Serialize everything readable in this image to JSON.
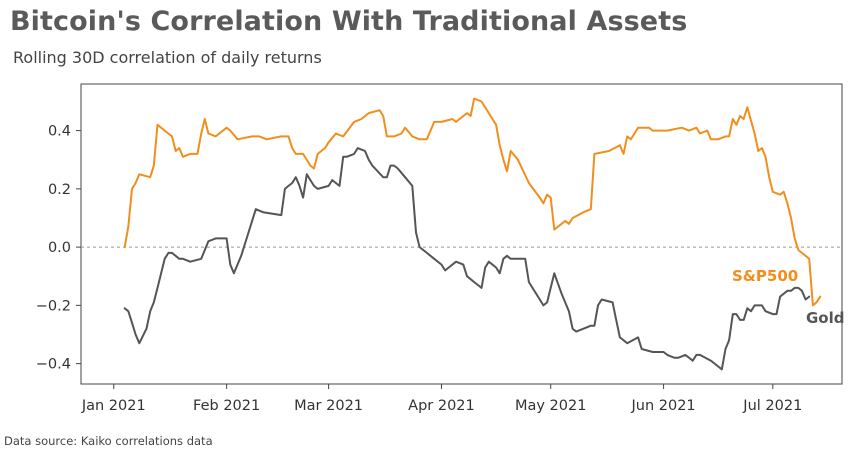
{
  "chart_data": {
    "type": "line",
    "title": "Bitcoin's Correlation With Traditional Assets",
    "subtitle": "Rolling 30D correlation of daily returns",
    "source": "Data source: Kaiko correlations data",
    "xlabel": "",
    "ylabel": "",
    "ylim": [
      -0.47,
      0.56
    ],
    "yticks": [
      0.4,
      0.2,
      0.0,
      -0.2,
      -0.4
    ],
    "ytick_labels": [
      "0.4",
      "0.2",
      "0.0",
      "−0.2",
      "−0.4"
    ],
    "x_domain": [
      "2020-12-23",
      "2021-07-20"
    ],
    "xticks": [
      "2021-01-01",
      "2021-02-01",
      "2021-03-01",
      "2021-04-01",
      "2021-05-01",
      "2021-06-01",
      "2021-07-01"
    ],
    "xtick_labels": [
      "Jan 2021",
      "Feb 2021",
      "Mar 2021",
      "Apr 2021",
      "May 2021",
      "Jun 2021",
      "Jul 2021"
    ],
    "zero_line": true,
    "colors": {
      "sp500": "#f28e1c",
      "gold": "#555555",
      "axis": "#444444",
      "zero": "#999999"
    },
    "series": [
      {
        "name": "S&P500",
        "color": "#f28e1c",
        "label_color": "#f28e1c",
        "points": [
          [
            "2021-01-04",
            0.0
          ],
          [
            "2021-01-05",
            0.07
          ],
          [
            "2021-01-06",
            0.2
          ],
          [
            "2021-01-07",
            0.22
          ],
          [
            "2021-01-08",
            0.25
          ],
          [
            "2021-01-11",
            0.24
          ],
          [
            "2021-01-12",
            0.28
          ],
          [
            "2021-01-13",
            0.42
          ],
          [
            "2021-01-15",
            0.4
          ],
          [
            "2021-01-17",
            0.38
          ],
          [
            "2021-01-18",
            0.33
          ],
          [
            "2021-01-19",
            0.34
          ],
          [
            "2021-01-20",
            0.31
          ],
          [
            "2021-01-22",
            0.32
          ],
          [
            "2021-01-24",
            0.32
          ],
          [
            "2021-01-25",
            0.39
          ],
          [
            "2021-01-26",
            0.44
          ],
          [
            "2021-01-27",
            0.39
          ],
          [
            "2021-01-29",
            0.38
          ],
          [
            "2021-02-01",
            0.41
          ],
          [
            "2021-02-02",
            0.4
          ],
          [
            "2021-02-04",
            0.37
          ],
          [
            "2021-02-08",
            0.38
          ],
          [
            "2021-02-10",
            0.38
          ],
          [
            "2021-02-12",
            0.37
          ],
          [
            "2021-02-16",
            0.38
          ],
          [
            "2021-02-18",
            0.38
          ],
          [
            "2021-02-19",
            0.34
          ],
          [
            "2021-02-20",
            0.32
          ],
          [
            "2021-02-22",
            0.32
          ],
          [
            "2021-02-24",
            0.28
          ],
          [
            "2021-02-25",
            0.27
          ],
          [
            "2021-02-26",
            0.32
          ],
          [
            "2021-02-28",
            0.34
          ],
          [
            "2021-03-01",
            0.36
          ],
          [
            "2021-03-03",
            0.39
          ],
          [
            "2021-03-05",
            0.38
          ],
          [
            "2021-03-08",
            0.43
          ],
          [
            "2021-03-10",
            0.44
          ],
          [
            "2021-03-12",
            0.46
          ],
          [
            "2021-03-15",
            0.47
          ],
          [
            "2021-03-16",
            0.45
          ],
          [
            "2021-03-17",
            0.38
          ],
          [
            "2021-03-19",
            0.38
          ],
          [
            "2021-03-21",
            0.39
          ],
          [
            "2021-03-22",
            0.41
          ],
          [
            "2021-03-24",
            0.38
          ],
          [
            "2021-03-26",
            0.37
          ],
          [
            "2021-03-28",
            0.37
          ],
          [
            "2021-03-30",
            0.43
          ],
          [
            "2021-04-01",
            0.43
          ],
          [
            "2021-04-04",
            0.44
          ],
          [
            "2021-04-05",
            0.43
          ],
          [
            "2021-04-08",
            0.46
          ],
          [
            "2021-04-09",
            0.45
          ],
          [
            "2021-04-10",
            0.51
          ],
          [
            "2021-04-12",
            0.5
          ],
          [
            "2021-04-14",
            0.46
          ],
          [
            "2021-04-16",
            0.42
          ],
          [
            "2021-04-17",
            0.35
          ],
          [
            "2021-04-18",
            0.3
          ],
          [
            "2021-04-19",
            0.26
          ],
          [
            "2021-04-20",
            0.33
          ],
          [
            "2021-04-22",
            0.3
          ],
          [
            "2021-04-25",
            0.22
          ],
          [
            "2021-04-28",
            0.17
          ],
          [
            "2021-04-29",
            0.15
          ],
          [
            "2021-04-30",
            0.18
          ],
          [
            "2021-05-01",
            0.17
          ],
          [
            "2021-05-02",
            0.06
          ],
          [
            "2021-05-04",
            0.08
          ],
          [
            "2021-05-05",
            0.09
          ],
          [
            "2021-05-06",
            0.08
          ],
          [
            "2021-05-07",
            0.1
          ],
          [
            "2021-05-10",
            0.12
          ],
          [
            "2021-05-12",
            0.13
          ],
          [
            "2021-05-13",
            0.32
          ],
          [
            "2021-05-17",
            0.33
          ],
          [
            "2021-05-20",
            0.35
          ],
          [
            "2021-05-21",
            0.32
          ],
          [
            "2021-05-22",
            0.38
          ],
          [
            "2021-05-23",
            0.37
          ],
          [
            "2021-05-24",
            0.39
          ],
          [
            "2021-05-25",
            0.41
          ],
          [
            "2021-05-28",
            0.41
          ],
          [
            "2021-05-29",
            0.4
          ],
          [
            "2021-06-02",
            0.4
          ],
          [
            "2021-06-06",
            0.41
          ],
          [
            "2021-06-08",
            0.4
          ],
          [
            "2021-06-10",
            0.41
          ],
          [
            "2021-06-11",
            0.39
          ],
          [
            "2021-06-13",
            0.4
          ],
          [
            "2021-06-14",
            0.37
          ],
          [
            "2021-06-16",
            0.37
          ],
          [
            "2021-06-18",
            0.38
          ],
          [
            "2021-06-19",
            0.38
          ],
          [
            "2021-06-20",
            0.44
          ],
          [
            "2021-06-21",
            0.42
          ],
          [
            "2021-06-22",
            0.45
          ],
          [
            "2021-06-23",
            0.44
          ],
          [
            "2021-06-24",
            0.48
          ],
          [
            "2021-06-26",
            0.39
          ],
          [
            "2021-06-27",
            0.33
          ],
          [
            "2021-06-28",
            0.34
          ],
          [
            "2021-06-29",
            0.31
          ],
          [
            "2021-06-30",
            0.24
          ],
          [
            "2021-07-01",
            0.19
          ],
          [
            "2021-07-03",
            0.18
          ],
          [
            "2021-07-04",
            0.19
          ],
          [
            "2021-07-05",
            0.15
          ],
          [
            "2021-07-06",
            0.1
          ],
          [
            "2021-07-07",
            0.03
          ],
          [
            "2021-07-08",
            -0.01
          ],
          [
            "2021-07-10",
            -0.03
          ],
          [
            "2021-07-11",
            -0.04
          ],
          [
            "2021-07-12",
            -0.2
          ],
          [
            "2021-07-13",
            -0.19
          ],
          [
            "2021-07-14",
            -0.17
          ]
        ]
      },
      {
        "name": "Gold",
        "color": "#555555",
        "label_color": "#555555",
        "points": [
          [
            "2021-01-04",
            -0.21
          ],
          [
            "2021-01-05",
            -0.22
          ],
          [
            "2021-01-06",
            -0.26
          ],
          [
            "2021-01-07",
            -0.3
          ],
          [
            "2021-01-08",
            -0.33
          ],
          [
            "2021-01-10",
            -0.28
          ],
          [
            "2021-01-11",
            -0.22
          ],
          [
            "2021-01-12",
            -0.19
          ],
          [
            "2021-01-13",
            -0.14
          ],
          [
            "2021-01-15",
            -0.04
          ],
          [
            "2021-01-16",
            -0.02
          ],
          [
            "2021-01-17",
            -0.02
          ],
          [
            "2021-01-19",
            -0.04
          ],
          [
            "2021-01-20",
            -0.04
          ],
          [
            "2021-01-22",
            -0.05
          ],
          [
            "2021-01-25",
            -0.04
          ],
          [
            "2021-01-27",
            0.02
          ],
          [
            "2021-01-29",
            0.03
          ],
          [
            "2021-02-01",
            0.03
          ],
          [
            "2021-02-02",
            -0.06
          ],
          [
            "2021-02-03",
            -0.09
          ],
          [
            "2021-02-05",
            -0.03
          ],
          [
            "2021-02-07",
            0.05
          ],
          [
            "2021-02-08",
            0.09
          ],
          [
            "2021-02-09",
            0.13
          ],
          [
            "2021-02-11",
            0.12
          ],
          [
            "2021-02-16",
            0.11
          ],
          [
            "2021-02-17",
            0.2
          ],
          [
            "2021-02-18",
            0.21
          ],
          [
            "2021-02-19",
            0.22
          ],
          [
            "2021-02-20",
            0.24
          ],
          [
            "2021-02-21",
            0.21
          ],
          [
            "2021-02-22",
            0.17
          ],
          [
            "2021-02-23",
            0.25
          ],
          [
            "2021-02-24",
            0.23
          ],
          [
            "2021-02-25",
            0.21
          ],
          [
            "2021-02-26",
            0.2
          ],
          [
            "2021-03-01",
            0.21
          ],
          [
            "2021-03-02",
            0.23
          ],
          [
            "2021-03-04",
            0.21
          ],
          [
            "2021-03-05",
            0.31
          ],
          [
            "2021-03-06",
            0.31
          ],
          [
            "2021-03-08",
            0.32
          ],
          [
            "2021-03-09",
            0.34
          ],
          [
            "2021-03-11",
            0.33
          ],
          [
            "2021-03-12",
            0.3
          ],
          [
            "2021-03-13",
            0.28
          ],
          [
            "2021-03-16",
            0.24
          ],
          [
            "2021-03-17",
            0.24
          ],
          [
            "2021-03-18",
            0.28
          ],
          [
            "2021-03-19",
            0.28
          ],
          [
            "2021-03-20",
            0.27
          ],
          [
            "2021-03-22",
            0.24
          ],
          [
            "2021-03-24",
            0.21
          ],
          [
            "2021-03-25",
            0.05
          ],
          [
            "2021-03-26",
            0.0
          ],
          [
            "2021-03-28",
            -0.02
          ],
          [
            "2021-03-30",
            -0.04
          ],
          [
            "2021-04-01",
            -0.06
          ],
          [
            "2021-04-02",
            -0.08
          ],
          [
            "2021-04-03",
            -0.07
          ],
          [
            "2021-04-05",
            -0.05
          ],
          [
            "2021-04-07",
            -0.06
          ],
          [
            "2021-04-08",
            -0.1
          ],
          [
            "2021-04-10",
            -0.12
          ],
          [
            "2021-04-11",
            -0.13
          ],
          [
            "2021-04-12",
            -0.14
          ],
          [
            "2021-04-13",
            -0.07
          ],
          [
            "2021-04-14",
            -0.05
          ],
          [
            "2021-04-16",
            -0.07
          ],
          [
            "2021-04-17",
            -0.09
          ],
          [
            "2021-04-18",
            -0.04
          ],
          [
            "2021-04-19",
            -0.03
          ],
          [
            "2021-04-20",
            -0.04
          ],
          [
            "2021-04-22",
            -0.04
          ],
          [
            "2021-04-23",
            -0.04
          ],
          [
            "2021-04-24",
            -0.04
          ],
          [
            "2021-04-25",
            -0.12
          ],
          [
            "2021-04-26",
            -0.14
          ],
          [
            "2021-04-28",
            -0.18
          ],
          [
            "2021-04-29",
            -0.2
          ],
          [
            "2021-04-30",
            -0.19
          ],
          [
            "2021-05-02",
            -0.09
          ],
          [
            "2021-05-04",
            -0.16
          ],
          [
            "2021-05-06",
            -0.22
          ],
          [
            "2021-05-07",
            -0.28
          ],
          [
            "2021-05-08",
            -0.29
          ],
          [
            "2021-05-10",
            -0.28
          ],
          [
            "2021-05-12",
            -0.27
          ],
          [
            "2021-05-13",
            -0.27
          ],
          [
            "2021-05-14",
            -0.2
          ],
          [
            "2021-05-15",
            -0.18
          ],
          [
            "2021-05-18",
            -0.19
          ],
          [
            "2021-05-19",
            -0.25
          ],
          [
            "2021-05-20",
            -0.31
          ],
          [
            "2021-05-22",
            -0.33
          ],
          [
            "2021-05-25",
            -0.31
          ],
          [
            "2021-05-26",
            -0.35
          ],
          [
            "2021-05-29",
            -0.36
          ],
          [
            "2021-06-01",
            -0.36
          ],
          [
            "2021-06-02",
            -0.37
          ],
          [
            "2021-06-04",
            -0.38
          ],
          [
            "2021-06-05",
            -0.38
          ],
          [
            "2021-06-07",
            -0.37
          ],
          [
            "2021-06-09",
            -0.39
          ],
          [
            "2021-06-10",
            -0.37
          ],
          [
            "2021-06-11",
            -0.37
          ],
          [
            "2021-06-14",
            -0.39
          ],
          [
            "2021-06-15",
            -0.4
          ],
          [
            "2021-06-17",
            -0.42
          ],
          [
            "2021-06-18",
            -0.35
          ],
          [
            "2021-06-19",
            -0.32
          ],
          [
            "2021-06-20",
            -0.23
          ],
          [
            "2021-06-21",
            -0.23
          ],
          [
            "2021-06-22",
            -0.25
          ],
          [
            "2021-06-23",
            -0.25
          ],
          [
            "2021-06-24",
            -0.21
          ],
          [
            "2021-06-25",
            -0.22
          ],
          [
            "2021-06-26",
            -0.2
          ],
          [
            "2021-06-28",
            -0.2
          ],
          [
            "2021-06-29",
            -0.22
          ],
          [
            "2021-07-01",
            -0.23
          ],
          [
            "2021-07-02",
            -0.23
          ],
          [
            "2021-07-03",
            -0.17
          ],
          [
            "2021-07-05",
            -0.15
          ],
          [
            "2021-07-06",
            -0.15
          ],
          [
            "2021-07-07",
            -0.14
          ],
          [
            "2021-07-08",
            -0.14
          ],
          [
            "2021-07-09",
            -0.15
          ],
          [
            "2021-07-10",
            -0.18
          ],
          [
            "2021-07-11",
            -0.17
          ]
        ]
      }
    ]
  }
}
